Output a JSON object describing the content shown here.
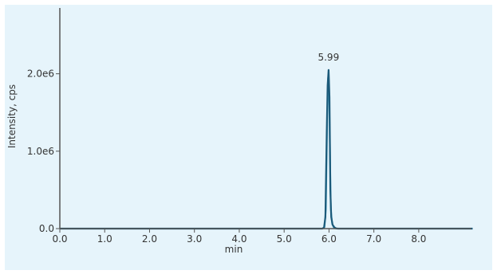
{
  "chart_data": {
    "type": "line",
    "title": "",
    "xlabel": "min",
    "ylabel": "Intensity, cps",
    "xlim": [
      0.0,
      9.3
    ],
    "ylim": [
      0,
      2850000
    ],
    "x_ticks": [
      0.0,
      1.0,
      2.0,
      3.0,
      4.0,
      5.0,
      6.0,
      7.0,
      8.0
    ],
    "x_tick_labels": [
      "0.0",
      "1.0",
      "2.0",
      "3.0",
      "4.0",
      "5.0",
      "6.0",
      "7.0",
      "8.0"
    ],
    "y_ticks": [
      0,
      1000000,
      2000000
    ],
    "y_tick_labels": [
      "0.0",
      "1.0e6",
      "2.0e6"
    ],
    "grid": false,
    "legend": "none",
    "colors": {
      "plot_background": "#e6f4fb",
      "axis": "#555555",
      "series_main": "#1b5a7a",
      "series_secondary": "#4aa8c8"
    },
    "annotations": [
      {
        "x": 5.99,
        "y": 2050000,
        "text": "5.99"
      }
    ],
    "series": [
      {
        "color": "#1b5a7a",
        "x": [
          0.0,
          5.85,
          5.89,
          5.92,
          5.95,
          5.97,
          5.99,
          6.01,
          6.03,
          6.05,
          6.08,
          6.12,
          6.16,
          6.2,
          9.2
        ],
        "y": [
          0,
          0,
          15000,
          150000,
          1250000,
          1850000,
          2050000,
          1700000,
          500000,
          150000,
          50000,
          15000,
          3000,
          0,
          0
        ]
      },
      {
        "color": "#4aa8c8",
        "x": [
          0.0,
          5.86,
          5.9,
          5.93,
          5.96,
          5.98,
          6.0,
          6.02,
          6.04,
          6.07,
          6.11,
          6.16,
          9.2
        ],
        "y": [
          0,
          0,
          20000,
          250000,
          1400000,
          1950000,
          1900000,
          1100000,
          250000,
          60000,
          10000,
          0,
          0
        ]
      }
    ]
  }
}
